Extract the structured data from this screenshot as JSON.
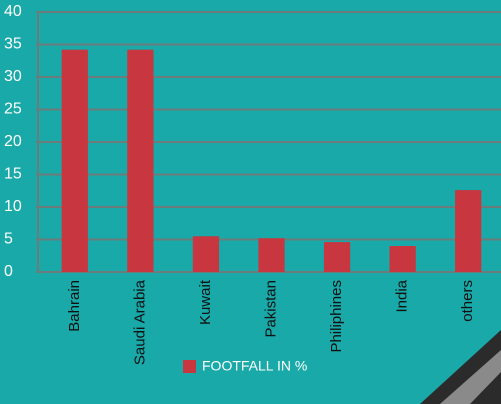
{
  "chart_data": {
    "type": "bar",
    "categories": [
      "Bahrain",
      "Saudi Arabia",
      "Kuwait",
      "Pakistan",
      "Philiphines",
      "India",
      "others"
    ],
    "series": [
      {
        "name": "FOOTFALL IN %",
        "color": "#c8363f",
        "values": [
          34.2,
          34.2,
          5.5,
          5.2,
          4.6,
          4.0,
          12.6
        ]
      }
    ],
    "ylim": [
      0,
      40
    ],
    "yticks": [
      0,
      5,
      10,
      15,
      20,
      25,
      30,
      35,
      40
    ],
    "grid": true,
    "legend": "bottom"
  }
}
